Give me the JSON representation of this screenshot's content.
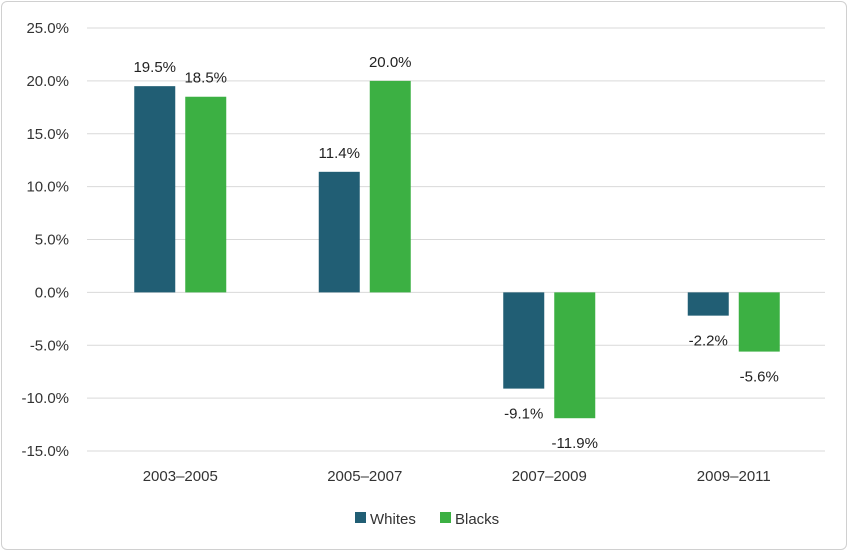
{
  "chart_data": {
    "type": "bar",
    "categories": [
      "2003–2005",
      "2005–2007",
      "2007–2009",
      "2009–2011"
    ],
    "series": [
      {
        "name": "Whites",
        "color": "#215e74",
        "values": [
          19.5,
          11.4,
          -9.1,
          -2.2
        ]
      },
      {
        "name": "Blacks",
        "color": "#3cb043",
        "values": [
          18.5,
          20.0,
          -11.9,
          -5.6
        ]
      }
    ],
    "data_labels": [
      [
        "19.5%",
        "11.4%",
        "-9.1%",
        "-2.2%"
      ],
      [
        "18.5%",
        "20.0%",
        "-11.9%",
        "-5.6%"
      ]
    ],
    "yticks": [
      25,
      20,
      15,
      10,
      5,
      0,
      -5,
      -10,
      -15
    ],
    "ytick_labels": [
      "25.0%",
      "20.0%",
      "15.0%",
      "10.0%",
      "5.0%",
      "0.0%",
      "-5.0%",
      "-10.0%",
      "-15.0%"
    ],
    "ylim": [
      -15,
      25
    ],
    "grid": true,
    "legend_position": "bottom-center",
    "title": "",
    "xlabel": "",
    "ylabel": ""
  }
}
